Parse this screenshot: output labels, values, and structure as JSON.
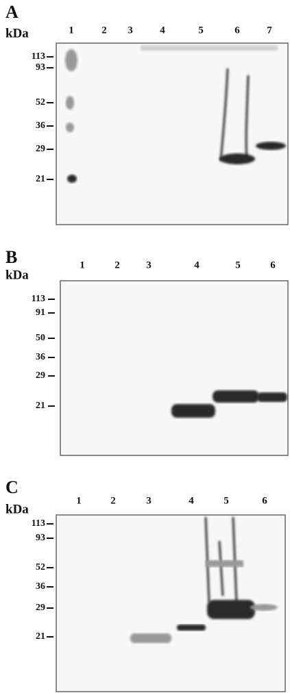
{
  "panels": [
    {
      "letter": "A",
      "unit": "kDa",
      "lanes": [
        "1",
        "2",
        "3",
        "4",
        "5",
        "6",
        "7"
      ],
      "markers": [
        "113",
        "93",
        "52",
        "36",
        "29",
        "21"
      ]
    },
    {
      "letter": "B",
      "unit": "kDa",
      "lanes": [
        "1",
        "2",
        "3",
        "4",
        "5",
        "6"
      ],
      "markers": [
        "113",
        "91",
        "50",
        "36",
        "29",
        "21"
      ]
    },
    {
      "letter": "C",
      "unit": "kDa",
      "lanes": [
        "1",
        "2",
        "3",
        "4",
        "5",
        "6"
      ],
      "markers": [
        "113",
        "93",
        "52",
        "36",
        "29",
        "21"
      ]
    }
  ]
}
